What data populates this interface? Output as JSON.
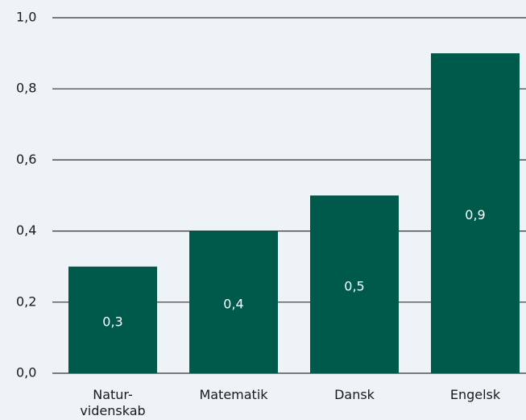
{
  "chart_data": {
    "type": "bar",
    "categories": [
      "Natur-\nvidenskab",
      "Matematik",
      "Dansk",
      "Engelsk"
    ],
    "values": [
      0.3,
      0.4,
      0.5,
      0.9
    ],
    "value_labels": [
      "0,3",
      "0,4",
      "0,5",
      "0,9"
    ],
    "color": "#005a4b",
    "ylim": [
      0,
      1.0
    ],
    "yticks": [
      {
        "value": 0,
        "label": "0,0"
      },
      {
        "value": 0.2,
        "label": "0,2"
      },
      {
        "value": 0.4,
        "label": "0,4"
      },
      {
        "value": 0.6,
        "label": "0,6"
      },
      {
        "value": 0.8,
        "label": "0,8"
      },
      {
        "value": 1.0,
        "label": "1,0"
      }
    ],
    "grid": true
  }
}
